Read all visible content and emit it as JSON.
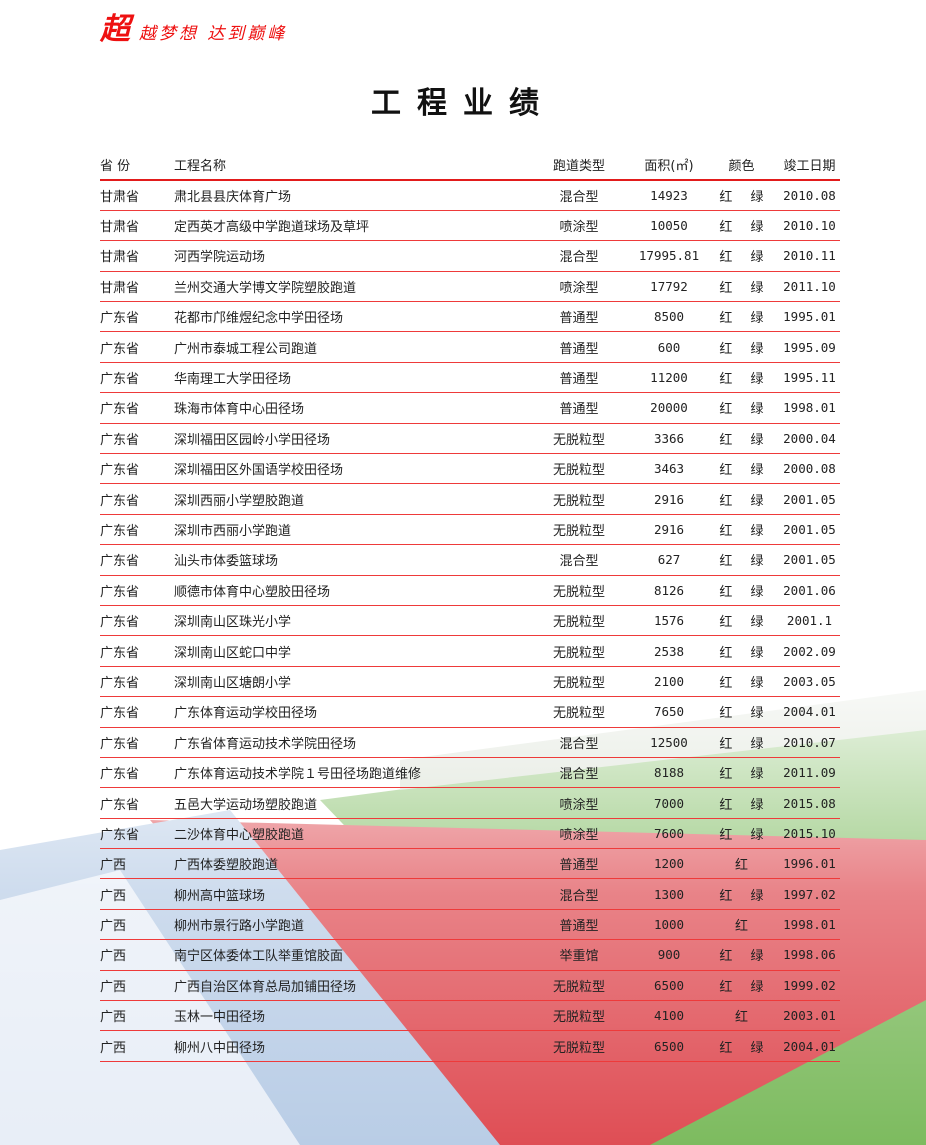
{
  "slogan": {
    "big": "超",
    "text": "越梦想 达到巅峰"
  },
  "title": "工程业绩",
  "headers": [
    "省 份",
    "工程名称",
    "跑道类型",
    "面积(㎡)",
    "颜色",
    "竣工日期"
  ],
  "rows": [
    [
      "甘肃省",
      "肃北县县庆体育广场",
      "混合型",
      "14923",
      "红 绿",
      "2010.08"
    ],
    [
      "甘肃省",
      "定西英才高级中学跑道球场及草坪",
      "喷涂型",
      "10050",
      "红 绿",
      "2010.10"
    ],
    [
      "甘肃省",
      "河西学院运动场",
      "混合型",
      "17995.81",
      "红 绿",
      "2010.11"
    ],
    [
      "甘肃省",
      "兰州交通大学博文学院塑胶跑道",
      "喷涂型",
      "17792",
      "红 绿",
      "2011.10"
    ],
    [
      "广东省",
      "花都市邝维煜纪念中学田径场",
      "普通型",
      "8500",
      "红 绿",
      "1995.01"
    ],
    [
      "广东省",
      "广州市泰城工程公司跑道",
      "普通型",
      "600",
      "红 绿",
      "1995.09"
    ],
    [
      "广东省",
      "华南理工大学田径场",
      "普通型",
      "11200",
      "红 绿",
      "1995.11"
    ],
    [
      "广东省",
      "珠海市体育中心田径场",
      "普通型",
      "20000",
      "红 绿",
      "1998.01"
    ],
    [
      "广东省",
      "深圳福田区园岭小学田径场",
      "无脱粒型",
      "3366",
      "红 绿",
      "2000.04"
    ],
    [
      "广东省",
      "深圳福田区外国语学校田径场",
      "无脱粒型",
      "3463",
      "红 绿",
      "2000.08"
    ],
    [
      "广东省",
      "深圳西丽小学塑胶跑道",
      "无脱粒型",
      "2916",
      "红 绿",
      "2001.05"
    ],
    [
      "广东省",
      "深圳市西丽小学跑道",
      "无脱粒型",
      "2916",
      "红 绿",
      "2001.05"
    ],
    [
      "广东省",
      "汕头市体委篮球场",
      "混合型",
      "627",
      "红 绿",
      "2001.05"
    ],
    [
      "广东省",
      "顺德市体育中心塑胶田径场",
      "无脱粒型",
      "8126",
      "红 绿",
      "2001.06"
    ],
    [
      "广东省",
      "深圳南山区珠光小学",
      "无脱粒型",
      "1576",
      "红 绿",
      "2001.1"
    ],
    [
      "广东省",
      "深圳南山区蛇口中学",
      "无脱粒型",
      "2538",
      "红 绿",
      "2002.09"
    ],
    [
      "广东省",
      "深圳南山区塘朗小学",
      "无脱粒型",
      "2100",
      "红 绿",
      "2003.05"
    ],
    [
      "广东省",
      "广东体育运动学校田径场",
      "无脱粒型",
      "7650",
      "红 绿",
      "2004.01"
    ],
    [
      "广东省",
      "广东省体育运动技术学院田径场",
      "混合型",
      "12500",
      "红 绿",
      "2010.07"
    ],
    [
      "广东省",
      "广东体育运动技术学院１号田径场跑道维修",
      "混合型",
      "8188",
      "红 绿",
      "2011.09"
    ],
    [
      "广东省",
      "五邑大学运动场塑胶跑道",
      "喷涂型",
      "7000",
      "红 绿",
      "2015.08"
    ],
    [
      "广东省",
      "二沙体育中心塑胶跑道",
      "喷涂型",
      "7600",
      "红 绿",
      "2015.10"
    ],
    [
      "广西",
      "广西体委塑胶跑道",
      "普通型",
      "1200",
      "红",
      "1996.01"
    ],
    [
      "广西",
      "柳州高中篮球场",
      "混合型",
      "1300",
      "红 绿",
      "1997.02"
    ],
    [
      "广西",
      "柳州市景行路小学跑道",
      "普通型",
      "1000",
      "红",
      "1998.01"
    ],
    [
      "广西",
      "南宁区体委体工队举重馆胶面",
      "举重馆",
      "900",
      "红 绿",
      "1998.06"
    ],
    [
      "广西",
      "广西自治区体育总局加铺田径场",
      "无脱粒型",
      "6500",
      "红 绿",
      "1999.02"
    ],
    [
      "广西",
      "玉林一中田径场",
      "无脱粒型",
      "4100",
      "红",
      "2003.01"
    ],
    [
      "广西",
      "柳州八中田径场",
      "无脱粒型",
      "6500",
      "红 绿",
      "2004.01"
    ]
  ],
  "colors": {
    "accent": "#e21b1b",
    "track": "#e0555a",
    "field": "#5aa040"
  }
}
